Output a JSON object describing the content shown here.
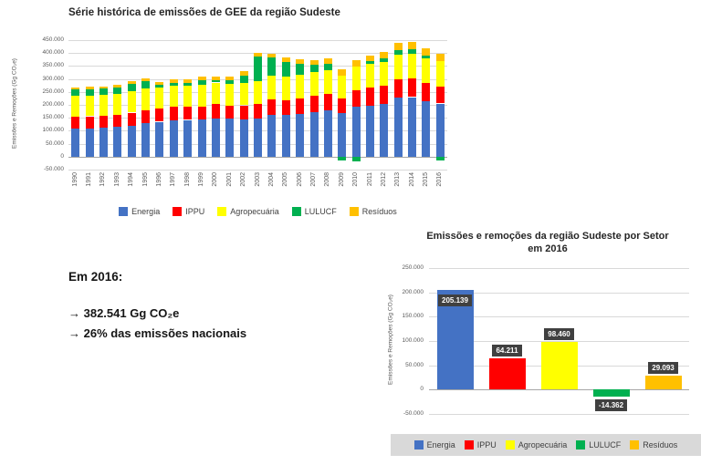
{
  "summary": {
    "heading": "Em 2016:",
    "lines": [
      "→ 382.541 Gg CO₂e",
      "→ 26% das emissões nacionais"
    ]
  },
  "colors": {
    "energia": "#4472C4",
    "ippu": "#FF0000",
    "agropecuaria": "#FFFF00",
    "lulucf": "#00B050",
    "residuos": "#FFC000",
    "grid": "#d9d9d9",
    "axis": "#a6a6a6",
    "data_label_bg": "#404040"
  },
  "chart_data": [
    {
      "type": "bar",
      "stacked": true,
      "title": "Série histórica de emissões de GEE da região Sudeste",
      "ylabel": "Emissões e Remoções (Gg CO₂e)",
      "ylim": [
        -50000,
        450000
      ],
      "ytick_step": 50000,
      "grid": true,
      "legend_position": "bottom",
      "categories": [
        "1990",
        "1991",
        "1992",
        "1993",
        "1994",
        "1995",
        "1996",
        "1997",
        "1998",
        "1999",
        "2000",
        "2001",
        "2002",
        "2003",
        "2004",
        "2005",
        "2006",
        "2007",
        "2008",
        "2009",
        "2010",
        "2011",
        "2012",
        "2013",
        "2014",
        "2015",
        "2016"
      ],
      "series": [
        {
          "name": "Energia",
          "color": "#4472C4",
          "values": [
            110000,
            110000,
            112000,
            115000,
            120000,
            128000,
            135000,
            140000,
            142000,
            143000,
            148000,
            146000,
            145000,
            148000,
            162000,
            160000,
            165000,
            172000,
            180000,
            168000,
            192000,
            198000,
            205000,
            228000,
            230000,
            215000,
            205139
          ]
        },
        {
          "name": "IPPU",
          "color": "#FF0000",
          "values": [
            45000,
            46000,
            46000,
            47000,
            50000,
            52000,
            50000,
            52000,
            50000,
            50000,
            55000,
            52000,
            53000,
            55000,
            60000,
            58000,
            60000,
            62000,
            63000,
            56000,
            65000,
            68000,
            68000,
            72000,
            72000,
            68000,
            64211
          ]
        },
        {
          "name": "Agropecuária",
          "color": "#FFFF00",
          "values": [
            80000,
            80000,
            80000,
            81000,
            82000,
            82000,
            82000,
            82000,
            82000,
            83000,
            83000,
            84000,
            86000,
            88000,
            90000,
            92000,
            92000,
            92000,
            92000,
            90000,
            91000,
            92000,
            93000,
            94000,
            95000,
            95000,
            98460
          ]
        },
        {
          "name": "LULUCF",
          "color": "#00B050",
          "values": [
            25000,
            25000,
            25000,
            25000,
            28000,
            28000,
            10000,
            12000,
            12000,
            20000,
            10000,
            12000,
            30000,
            95000,
            70000,
            55000,
            40000,
            28000,
            22000,
            -15000,
            -20000,
            10000,
            12000,
            18000,
            18000,
            12000,
            -14362
          ]
        },
        {
          "name": "Resíduos",
          "color": "#FFC000",
          "values": [
            8000,
            9000,
            9000,
            10000,
            10000,
            11000,
            12000,
            12000,
            13000,
            13000,
            14000,
            15000,
            16000,
            16000,
            17000,
            18000,
            19000,
            20000,
            21000,
            22000,
            23000,
            24000,
            25000,
            26000,
            27000,
            28000,
            29093
          ]
        }
      ]
    },
    {
      "type": "bar",
      "stacked": false,
      "title": "Emissões e remoções da região Sudeste por Setor em 2016",
      "title_lines": [
        "Emissões e remoções da região Sudeste por Setor",
        "em 2016"
      ],
      "ylabel": "Emissões e Remoções (Gg CO₂e)",
      "ylim": [
        -50000,
        250000
      ],
      "ytick_step": 50000,
      "grid": true,
      "legend_position": "bottom",
      "categories": [
        "Energia",
        "IPPU",
        "Agropecuária",
        "LULUCF",
        "Resíduos"
      ],
      "colors": [
        "#4472C4",
        "#FF0000",
        "#FFFF00",
        "#00B050",
        "#FFC000"
      ],
      "values": [
        205139,
        64211,
        98460,
        -14362,
        29093
      ],
      "data_labels": [
        "205.139",
        "64.211",
        "98.460",
        "-14.362",
        "29.093"
      ],
      "label_placement": [
        "inside-top",
        "above",
        "above",
        "below",
        "above"
      ]
    }
  ]
}
